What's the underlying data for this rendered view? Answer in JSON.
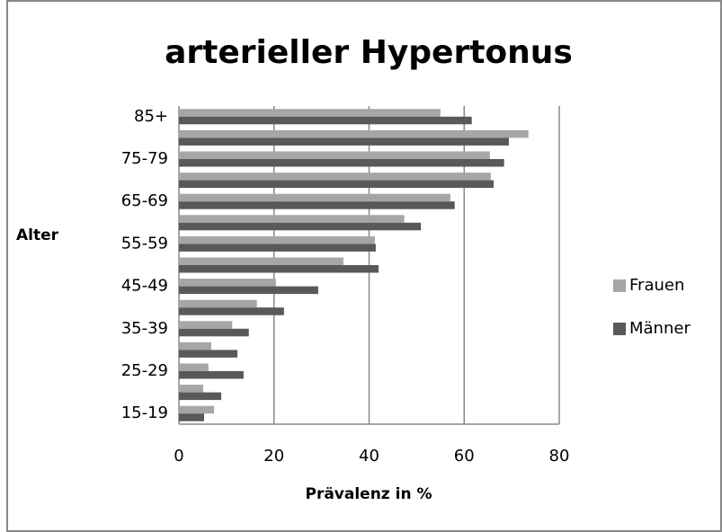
{
  "chart_data": {
    "type": "barh",
    "title": "arterieller Hypertonus",
    "x_label": "Prävalenz in %",
    "y_label": "Alter",
    "categories": [
      "15-19",
      null,
      "25-29",
      null,
      "35-39",
      null,
      "45-49",
      null,
      "55-59",
      null,
      "65-69",
      null,
      "75-79",
      null,
      "85+"
    ],
    "series": [
      {
        "name": "Frauen",
        "color": "#a6a6a6",
        "values": [
          7.4,
          5.1,
          6.2,
          6.8,
          11.2,
          16.4,
          20.4,
          34.6,
          41.2,
          47.4,
          57.1,
          65.6,
          65.4,
          73.5,
          55.0
        ]
      },
      {
        "name": "Männer",
        "color": "#595959",
        "values": [
          5.3,
          8.9,
          13.6,
          12.3,
          14.7,
          22.1,
          29.3,
          42.0,
          41.4,
          50.9,
          58.0,
          66.2,
          68.4,
          69.4,
          61.6
        ]
      }
    ],
    "xlim": [
      0,
      80
    ],
    "xticks": [
      0,
      20,
      40,
      60,
      80
    ],
    "grid": true,
    "legend": "right"
  }
}
